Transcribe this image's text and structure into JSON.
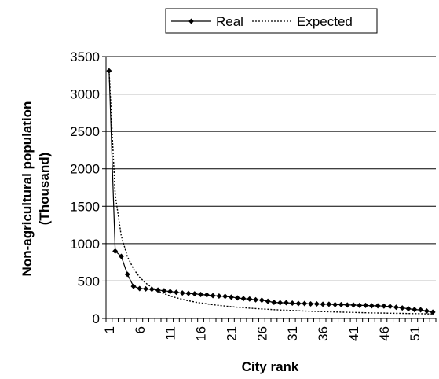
{
  "chart_data": {
    "type": "line",
    "xlabel": "City rank",
    "ylabel_lines": [
      "Non-agricultural population",
      "(Thousand)"
    ],
    "ylim": [
      0,
      3500
    ],
    "yticks": [
      0,
      500,
      1000,
      1500,
      2000,
      2500,
      3000,
      3500
    ],
    "xlim": [
      1,
      54
    ],
    "xticks": [
      1,
      6,
      11,
      16,
      21,
      26,
      31,
      36,
      41,
      46,
      51
    ],
    "grid": "horizontal",
    "legend_position": "top",
    "series": [
      {
        "name": "Real",
        "style": "solid-diamond",
        "color": "#000000",
        "x": [
          1,
          2,
          3,
          4,
          5,
          6,
          7,
          8,
          9,
          10,
          11,
          12,
          13,
          14,
          15,
          16,
          17,
          18,
          19,
          20,
          21,
          22,
          23,
          24,
          25,
          26,
          27,
          28,
          29,
          30,
          31,
          32,
          33,
          34,
          35,
          36,
          37,
          38,
          39,
          40,
          41,
          42,
          43,
          44,
          45,
          46,
          47,
          48,
          49,
          50,
          51,
          52,
          53,
          54
        ],
        "y": [
          3310,
          900,
          830,
          590,
          430,
          400,
          395,
          390,
          380,
          370,
          360,
          350,
          340,
          335,
          330,
          320,
          315,
          305,
          300,
          295,
          285,
          275,
          265,
          260,
          250,
          245,
          230,
          215,
          210,
          210,
          205,
          200,
          200,
          195,
          195,
          190,
          190,
          185,
          185,
          180,
          180,
          175,
          175,
          170,
          170,
          165,
          160,
          150,
          140,
          130,
          120,
          115,
          100,
          85
        ]
      },
      {
        "name": "Expected",
        "style": "dotted",
        "color": "#000000",
        "x": [
          1,
          2,
          3,
          4,
          5,
          6,
          7,
          8,
          9,
          10,
          11,
          12,
          13,
          14,
          15,
          16,
          17,
          18,
          19,
          20,
          21,
          22,
          23,
          24,
          25,
          26,
          27,
          28,
          29,
          30,
          31,
          32,
          33,
          34,
          35,
          36,
          37,
          38,
          39,
          40,
          41,
          42,
          43,
          44,
          45,
          46,
          47,
          48,
          49,
          50,
          51,
          52,
          53,
          54
        ],
        "y": [
          3310,
          1655,
          1103,
          828,
          662,
          552,
          473,
          414,
          368,
          331,
          301,
          276,
          255,
          236,
          221,
          207,
          195,
          184,
          174,
          166,
          158,
          150,
          144,
          138,
          132,
          127,
          123,
          118,
          114,
          110,
          107,
          103,
          100,
          97,
          95,
          92,
          89,
          87,
          85,
          83,
          81,
          79,
          77,
          75,
          74,
          72,
          70,
          69,
          68,
          66,
          65,
          64,
          62,
          61
        ]
      }
    ]
  }
}
